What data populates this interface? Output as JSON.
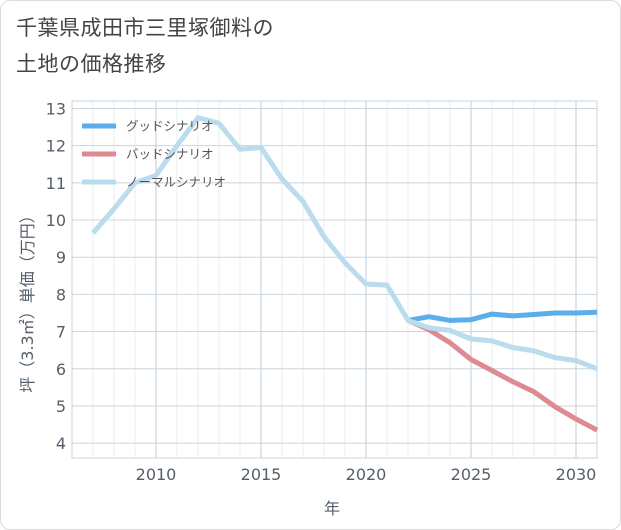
{
  "title": {
    "line1": "千葉県成田市三里塚御料の",
    "line2": "土地の価格推移"
  },
  "colors": {
    "good": "#5aaeea",
    "bad": "#dd8a92",
    "normal": "#badcec",
    "grid": "#c8d4de",
    "axis_text": "#555f6a"
  },
  "chart_data": {
    "type": "line",
    "title": "千葉県成田市三里塚御料の土地の価格推移",
    "xlabel": "年",
    "ylabel": "坪（3.3㎡）単価（万円）",
    "xlim": [
      2006,
      2031
    ],
    "ylim": [
      3.6,
      13.2
    ],
    "xticks": [
      2010,
      2015,
      2020,
      2025,
      2030
    ],
    "yticks": [
      4,
      5,
      6,
      7,
      8,
      9,
      10,
      11,
      12,
      13
    ],
    "legend_position": "top-left",
    "series": [
      {
        "name": "グッドシナリオ",
        "key": "good",
        "x": [
          2022,
          2023,
          2024,
          2025,
          2026,
          2027,
          2028,
          2029,
          2030,
          2031
        ],
        "values": [
          7.3,
          7.4,
          7.3,
          7.32,
          7.47,
          7.42,
          7.46,
          7.5,
          7.5,
          7.52
        ]
      },
      {
        "name": "バッドシナリオ",
        "key": "bad",
        "x": [
          2022,
          2023,
          2024,
          2025,
          2026,
          2027,
          2028,
          2029,
          2030,
          2031
        ],
        "values": [
          7.3,
          7.05,
          6.7,
          6.25,
          5.95,
          5.65,
          5.38,
          4.98,
          4.65,
          4.35
        ]
      },
      {
        "name": "ノーマルシナリオ",
        "key": "normal",
        "x": [
          2007,
          2008,
          2009,
          2010,
          2011,
          2012,
          2013,
          2014,
          2015,
          2016,
          2017,
          2018,
          2019,
          2020,
          2021,
          2022,
          2023,
          2024,
          2025,
          2026,
          2027,
          2028,
          2029,
          2030,
          2031
        ],
        "values": [
          9.65,
          10.3,
          11.0,
          11.2,
          12.0,
          12.75,
          12.6,
          11.9,
          11.95,
          11.1,
          10.5,
          9.55,
          8.85,
          8.28,
          8.25,
          7.3,
          7.1,
          7.03,
          6.8,
          6.75,
          6.57,
          6.48,
          6.3,
          6.22,
          6.0
        ]
      }
    ]
  }
}
